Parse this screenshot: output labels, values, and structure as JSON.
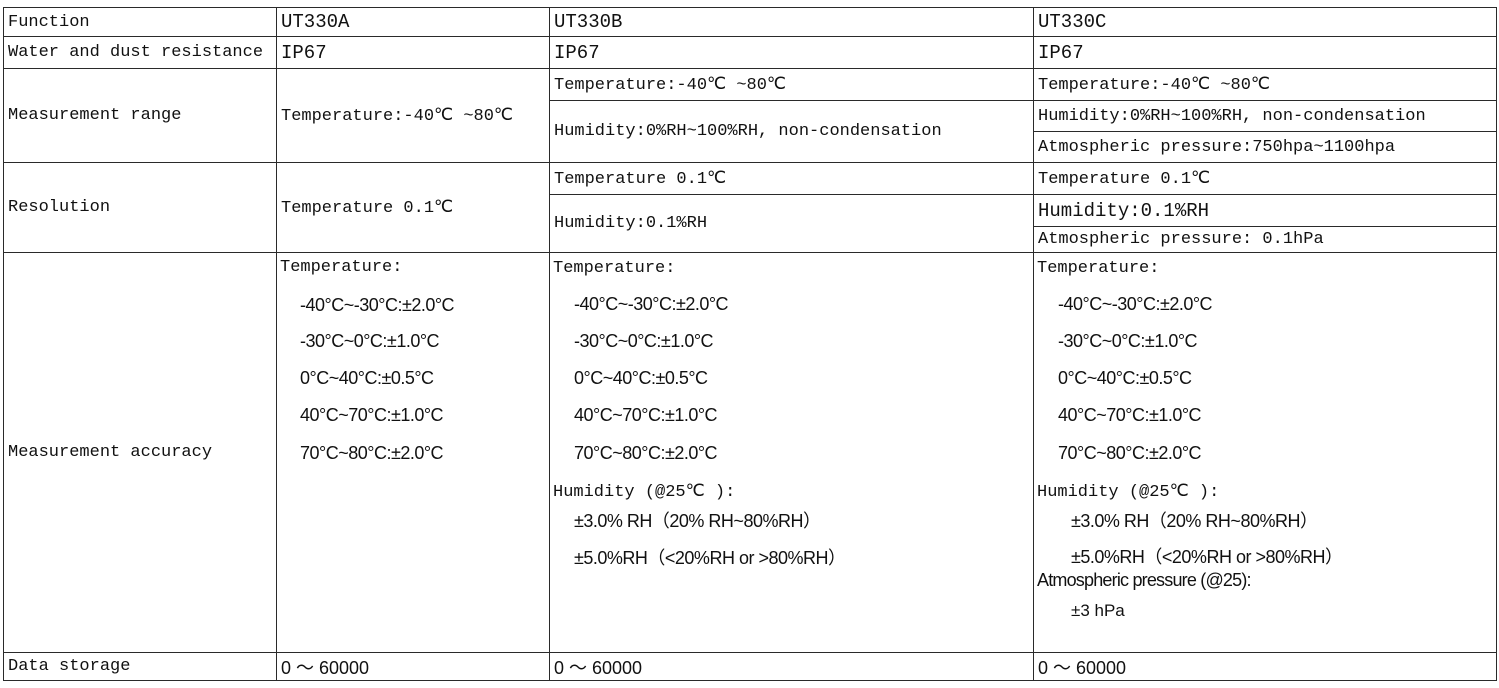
{
  "header": {
    "function": "Function",
    "a": "UT330A",
    "b": "UT330B",
    "c": "UT330C"
  },
  "water": {
    "label": "Water and dust resistance",
    "a": "IP67",
    "b": "IP67",
    "c": "IP67"
  },
  "range": {
    "label": "Measurement range",
    "a": "Temperature:-40℃ ~80℃",
    "b": [
      "Temperature:-40℃ ~80℃",
      "Humidity:0%RH~100%RH, non-condensation"
    ],
    "c": [
      "Temperature:-40℃ ~80℃",
      "Humidity:0%RH~100%RH, non-condensation",
      "Atmospheric pressure:750hpa~1100hpa"
    ]
  },
  "resolution": {
    "label": "Resolution",
    "a": "Temperature 0.1℃",
    "b": [
      "Temperature 0.1℃",
      "Humidity:0.1%RH"
    ],
    "c": [
      "Temperature 0.1℃",
      "Humidity:0.1%RH",
      "Atmospheric pressure: 0.1hPa"
    ]
  },
  "accuracy": {
    "label": "Measurement accuracy",
    "temp_title": "Temperature:",
    "temp_lines": [
      "-40°C~-30°C:±2.0°C",
      "-30°C~0°C:±1.0°C",
      "0°C~40°C:±0.5°C",
      "40°C~70°C:±1.0°C",
      "70°C~80°C:±2.0°C"
    ],
    "hum_title": "Humidity (@25℃ ):",
    "hum_lines": [
      "±3.0% RH（20% RH~80%RH）",
      "±5.0%RH（<20%RH or >80%RH）"
    ],
    "pressure_title": "Atmospheric pressure (@25):",
    "pressure_line": "±3 hPa"
  },
  "storage": {
    "label": "Data storage",
    "a": "0 ～ 60000",
    "b": "0 ～ 60000",
    "c": "0 ～ 60000"
  }
}
